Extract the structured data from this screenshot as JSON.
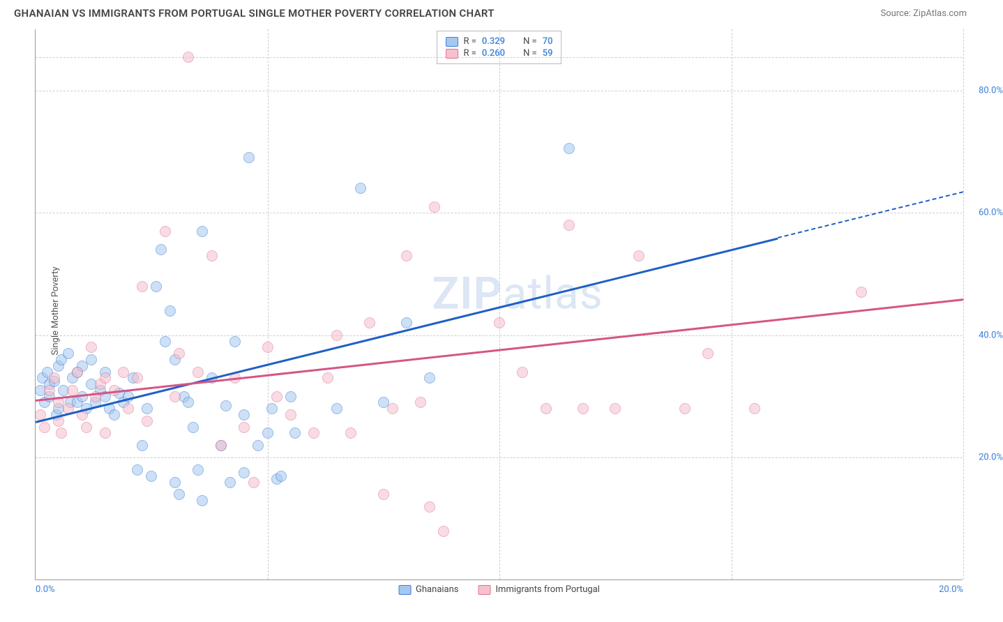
{
  "title": "GHANAIAN VS IMMIGRANTS FROM PORTUGAL SINGLE MOTHER POVERTY CORRELATION CHART",
  "source": "Source: ZipAtlas.com",
  "watermark": "ZIPatlas",
  "y_axis_label": "Single Mother Poverty",
  "chart": {
    "type": "scatter",
    "xlim": [
      0,
      20
    ],
    "ylim": [
      0,
      90
    ],
    "x_ticks": [
      0,
      20
    ],
    "x_tick_labels": [
      "0.0%",
      "20.0%"
    ],
    "y_ticks": [
      20,
      40,
      60,
      80
    ],
    "y_tick_labels": [
      "20.0%",
      "40.0%",
      "60.0%",
      "80.0%"
    ],
    "y_grid": [
      20,
      40,
      60,
      80,
      85.5
    ],
    "x_grid": [
      5,
      10,
      15,
      20
    ],
    "background_color": "#ffffff",
    "grid_color": "#cccccc",
    "axis_color": "#999999",
    "tick_color": "#3b7fd6",
    "marker_radius": 8,
    "marker_opacity": 0.55,
    "series": [
      {
        "key": "a",
        "name": "Ghanaians",
        "fill_color": "#a5c7f0",
        "border_color": "#3b7fd6",
        "R": "0.329",
        "N": "70",
        "trend": {
          "x1": 0,
          "y1": 26,
          "x2": 16,
          "y2": 56,
          "dash_to_x": 20,
          "dash_to_y": 63.5,
          "color": "#1f5fc4",
          "width": 2.5
        },
        "points": [
          [
            0.1,
            31
          ],
          [
            0.15,
            33
          ],
          [
            0.2,
            29
          ],
          [
            0.25,
            34
          ],
          [
            0.3,
            30
          ],
          [
            0.3,
            32
          ],
          [
            0.4,
            32.5
          ],
          [
            0.45,
            27
          ],
          [
            0.5,
            35
          ],
          [
            0.5,
            28
          ],
          [
            0.55,
            36
          ],
          [
            0.6,
            31
          ],
          [
            0.7,
            37
          ],
          [
            0.75,
            29
          ],
          [
            0.8,
            33
          ],
          [
            0.9,
            29
          ],
          [
            0.9,
            34
          ],
          [
            1.0,
            35
          ],
          [
            1.0,
            30
          ],
          [
            1.1,
            28
          ],
          [
            1.2,
            36
          ],
          [
            1.2,
            32
          ],
          [
            1.3,
            29
          ],
          [
            1.4,
            31
          ],
          [
            1.5,
            30
          ],
          [
            1.5,
            34
          ],
          [
            1.6,
            28
          ],
          [
            1.7,
            27
          ],
          [
            1.8,
            30.5
          ],
          [
            1.9,
            29
          ],
          [
            2.0,
            30
          ],
          [
            2.1,
            33
          ],
          [
            2.2,
            18
          ],
          [
            2.3,
            22
          ],
          [
            2.4,
            28
          ],
          [
            2.5,
            17
          ],
          [
            2.6,
            48
          ],
          [
            2.7,
            54
          ],
          [
            2.8,
            39
          ],
          [
            2.9,
            44
          ],
          [
            3.0,
            16
          ],
          [
            3.0,
            36
          ],
          [
            3.1,
            14
          ],
          [
            3.2,
            30
          ],
          [
            3.3,
            29
          ],
          [
            3.4,
            25
          ],
          [
            3.5,
            18
          ],
          [
            3.6,
            57
          ],
          [
            3.6,
            13
          ],
          [
            3.8,
            33
          ],
          [
            4.0,
            22
          ],
          [
            4.1,
            28.5
          ],
          [
            4.2,
            16
          ],
          [
            4.3,
            39
          ],
          [
            4.5,
            27
          ],
          [
            4.5,
            17.5
          ],
          [
            4.6,
            69
          ],
          [
            4.8,
            22
          ],
          [
            5.0,
            24
          ],
          [
            5.1,
            28
          ],
          [
            5.2,
            16.5
          ],
          [
            5.3,
            17
          ],
          [
            5.5,
            30
          ],
          [
            5.6,
            24
          ],
          [
            6.5,
            28
          ],
          [
            7.0,
            64
          ],
          [
            7.5,
            29
          ],
          [
            8.0,
            42
          ],
          [
            8.5,
            33
          ],
          [
            11.5,
            70.5
          ]
        ]
      },
      {
        "key": "b",
        "name": "Immigrants from Portugal",
        "fill_color": "#f5c1cd",
        "border_color": "#e07090",
        "R": "0.260",
        "N": "59",
        "trend": {
          "x1": 0,
          "y1": 29.5,
          "x2": 20,
          "y2": 46,
          "color": "#d65584",
          "width": 2.5
        },
        "points": [
          [
            0.1,
            27
          ],
          [
            0.2,
            25
          ],
          [
            0.3,
            31
          ],
          [
            0.4,
            33
          ],
          [
            0.5,
            29
          ],
          [
            0.5,
            26
          ],
          [
            0.55,
            24
          ],
          [
            0.7,
            28
          ],
          [
            0.8,
            31
          ],
          [
            0.9,
            34
          ],
          [
            1.0,
            27
          ],
          [
            1.1,
            25
          ],
          [
            1.2,
            38
          ],
          [
            1.3,
            30
          ],
          [
            1.4,
            32
          ],
          [
            1.5,
            33
          ],
          [
            1.5,
            24
          ],
          [
            1.7,
            31
          ],
          [
            1.9,
            34
          ],
          [
            2.0,
            28
          ],
          [
            2.2,
            33
          ],
          [
            2.3,
            48
          ],
          [
            2.4,
            26
          ],
          [
            2.8,
            57
          ],
          [
            3.0,
            30
          ],
          [
            3.1,
            37
          ],
          [
            3.3,
            85.5
          ],
          [
            3.5,
            34
          ],
          [
            3.8,
            53
          ],
          [
            4.0,
            22
          ],
          [
            4.3,
            33
          ],
          [
            4.5,
            25
          ],
          [
            4.7,
            16
          ],
          [
            5.0,
            38
          ],
          [
            5.2,
            30
          ],
          [
            5.5,
            27
          ],
          [
            6.0,
            24
          ],
          [
            6.3,
            33
          ],
          [
            6.5,
            40
          ],
          [
            6.8,
            24
          ],
          [
            7.2,
            42
          ],
          [
            7.5,
            14
          ],
          [
            7.7,
            28
          ],
          [
            8.0,
            53
          ],
          [
            8.3,
            29
          ],
          [
            8.5,
            12
          ],
          [
            8.6,
            61
          ],
          [
            8.8,
            8
          ],
          [
            10.0,
            42
          ],
          [
            10.5,
            34
          ],
          [
            11.0,
            28
          ],
          [
            11.5,
            58
          ],
          [
            11.8,
            28
          ],
          [
            12.5,
            28
          ],
          [
            13.0,
            53
          ],
          [
            14.0,
            28
          ],
          [
            14.5,
            37
          ],
          [
            15.5,
            28
          ],
          [
            17.8,
            47
          ]
        ]
      }
    ]
  },
  "legend_labels": {
    "R": "R =",
    "N": "N ="
  },
  "bottom_legend": [
    "Ghanaians",
    "Immigrants from Portugal"
  ]
}
